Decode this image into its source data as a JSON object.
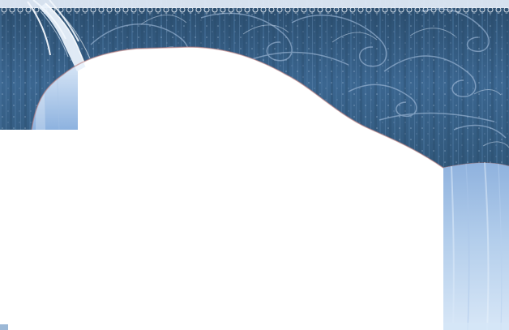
{
  "scene": {
    "description_colors": {
      "curtain_dark": "#2e5475",
      "curtain_mid": "#3e6890",
      "curtain_light": "#5f8fba",
      "sheer_light": "#e8f2fc",
      "sheer_mid": "#b9d2ee",
      "sheer_deep": "#8fb3df",
      "lace": "#dfe9f6",
      "swirl": "#9db7d6",
      "edge_shadow": "#b97a7a"
    },
    "icons": {
      "curtain": "valance-curtain-icon",
      "lace": "lace-trim-icon",
      "sheer_left": "sheer-drape-left-icon",
      "sheer_right": "sheer-drape-right-icon"
    }
  }
}
